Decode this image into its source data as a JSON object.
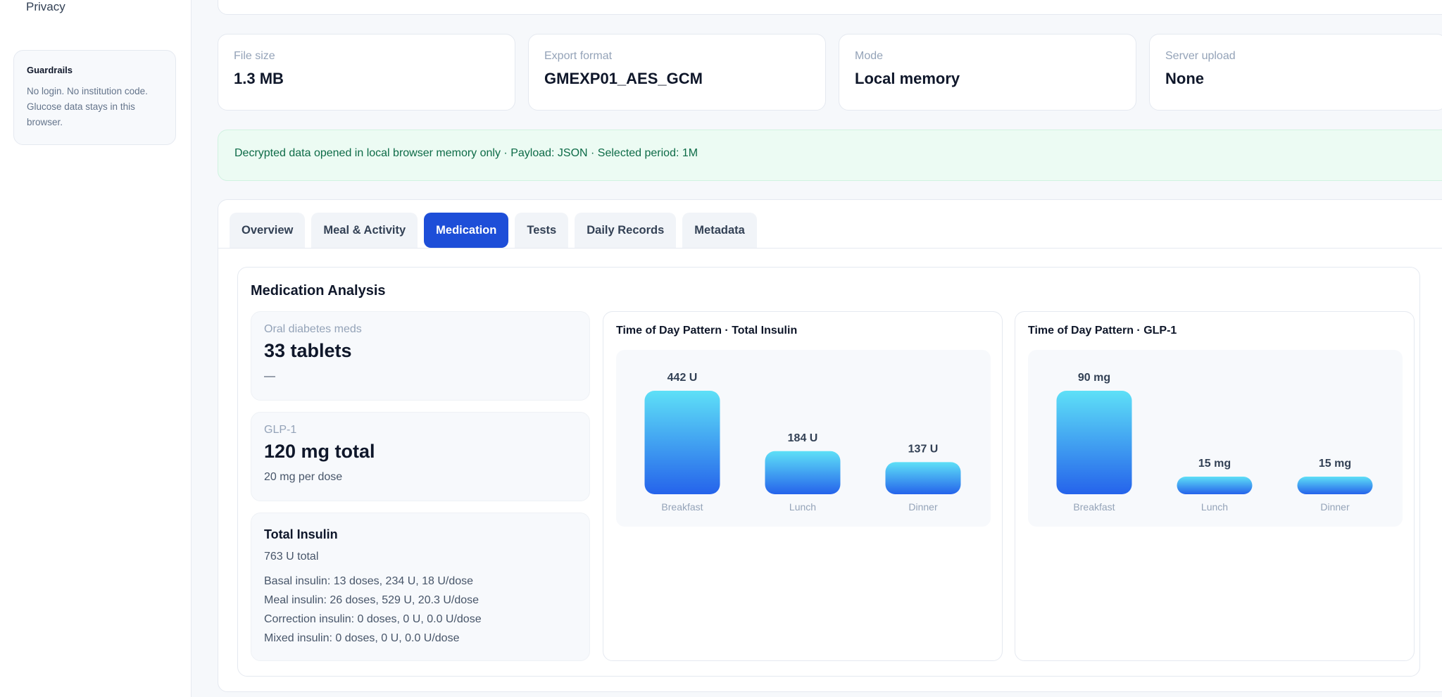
{
  "sidebar": {
    "nav_privacy": "Privacy",
    "guardrails": {
      "title": "Guardrails",
      "text": "No login. No institution code. Glucose data stays in this browser."
    }
  },
  "stats": [
    {
      "label": "File size",
      "value": "1.3 MB"
    },
    {
      "label": "Export format",
      "value": "GMEXP01_AES_GCM"
    },
    {
      "label": "Mode",
      "value": "Local memory"
    },
    {
      "label": "Server upload",
      "value": "None"
    }
  ],
  "notice": "Decrypted data opened in local browser memory only · Payload: JSON · Selected period: 1M",
  "tabs": [
    {
      "label": "Overview",
      "active": false
    },
    {
      "label": "Meal & Activity",
      "active": false
    },
    {
      "label": "Medication",
      "active": true
    },
    {
      "label": "Tests",
      "active": false
    },
    {
      "label": "Daily Records",
      "active": false
    },
    {
      "label": "Metadata",
      "active": false
    }
  ],
  "analysis": {
    "title": "Medication Analysis",
    "oral": {
      "label": "Oral diabetes meds",
      "value": "33 tablets",
      "sub": "—"
    },
    "glp1": {
      "label": "GLP-1",
      "value": "120 mg total",
      "sub": "20 mg per dose"
    },
    "insulin": {
      "title": "Total Insulin",
      "total": "763 U total",
      "lines": [
        "Basal insulin: 13 doses, 234 U, 18 U/dose",
        "Meal insulin: 26 doses, 529 U, 20.3 U/dose",
        "Correction insulin: 0 doses, 0 U, 0.0 U/dose",
        "Mixed insulin: 0 doses, 0 U, 0.0 U/dose"
      ]
    }
  },
  "colors": {
    "accent": "#1d4ed8",
    "bar_top": "#5ee0f7",
    "bar_bottom": "#2563eb",
    "notice_bg": "#ecfbf3",
    "notice_text": "#0d6b47"
  },
  "chart_data": [
    {
      "type": "bar",
      "title": "Time of Day Pattern · Total Insulin",
      "categories": [
        "Breakfast",
        "Lunch",
        "Dinner"
      ],
      "values": [
        442,
        184,
        137
      ],
      "data_labels": [
        "442 U",
        "184 U",
        "137 U"
      ],
      "unit": "U"
    },
    {
      "type": "bar",
      "title": "Time of Day Pattern · GLP-1",
      "categories": [
        "Breakfast",
        "Lunch",
        "Dinner"
      ],
      "values": [
        90,
        15,
        15
      ],
      "data_labels": [
        "90 mg",
        "15 mg",
        "15 mg"
      ],
      "unit": "mg"
    }
  ]
}
